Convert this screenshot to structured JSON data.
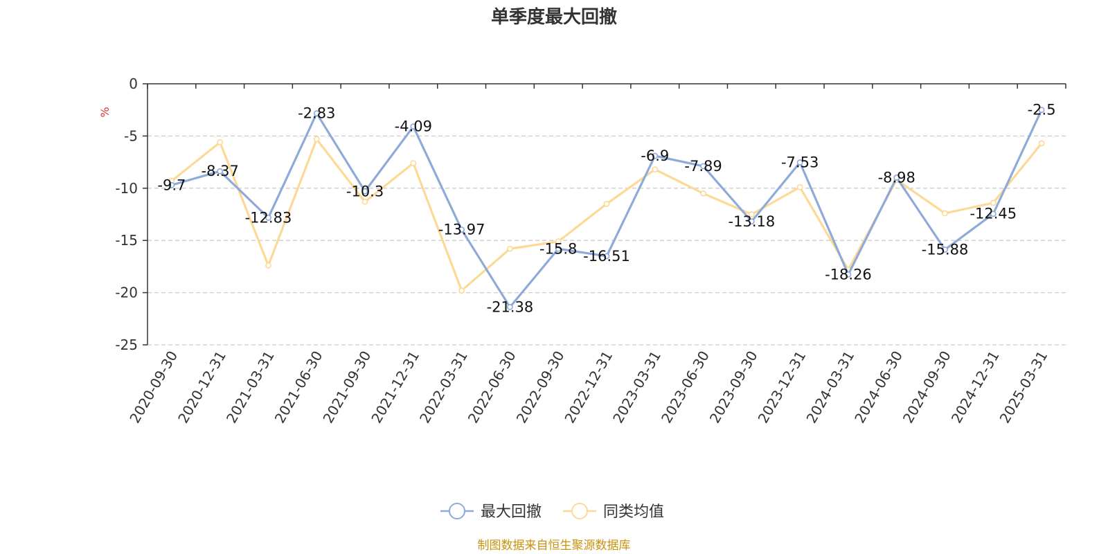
{
  "chart_data": {
    "type": "line",
    "title": "单季度最大回撤",
    "ylabel": "%",
    "ylim": [
      -25,
      0
    ],
    "yticks": [
      0,
      -5,
      -10,
      -15,
      -20,
      -25
    ],
    "grid": true,
    "legend_position": "bottom-center",
    "categories": [
      "2020-09-30",
      "2020-12-31",
      "2021-03-31",
      "2021-06-30",
      "2021-09-30",
      "2021-12-31",
      "2022-03-31",
      "2022-06-30",
      "2022-09-30",
      "2022-12-31",
      "2023-03-31",
      "2023-06-30",
      "2023-09-30",
      "2023-12-31",
      "2024-03-31",
      "2024-06-30",
      "2024-09-30",
      "2024-12-31",
      "2025-03-31"
    ],
    "series": [
      {
        "name": "最大回撤",
        "color": "#8eaad8",
        "values": [
          -9.7,
          -8.37,
          -12.83,
          -2.83,
          -10.3,
          -4.09,
          -13.97,
          -21.38,
          -15.8,
          -16.51,
          -6.9,
          -7.89,
          -13.18,
          -7.53,
          -18.26,
          -8.98,
          -15.88,
          -12.45,
          -2.5
        ],
        "labels": [
          "-9.7",
          "-8.37",
          "-12.83",
          "-2.83",
          "-10.3",
          "-4.09",
          "-13.97",
          "-21.38",
          "-15.8",
          "-16.51",
          "-6.9",
          "-7.89",
          "-13.18",
          "-7.53",
          "-18.26",
          "-8.98",
          "-15.88",
          "-12.45",
          "-2.5"
        ]
      },
      {
        "name": "同类均值",
        "color": "#fcd996",
        "values": [
          -9.3,
          -5.6,
          -17.4,
          -5.3,
          -11.3,
          -7.6,
          -19.8,
          -15.8,
          -15.1,
          -11.5,
          -8.2,
          -10.5,
          -12.5,
          -9.9,
          -17.8,
          -9.2,
          -12.4,
          -11.4,
          -5.7
        ]
      }
    ],
    "colors": {
      "axis": "#333333",
      "grid": "#cccccc",
      "unit": "#e0302f",
      "source": "#c8920e"
    },
    "source_note": "制图数据来自恒生聚源数据库"
  }
}
